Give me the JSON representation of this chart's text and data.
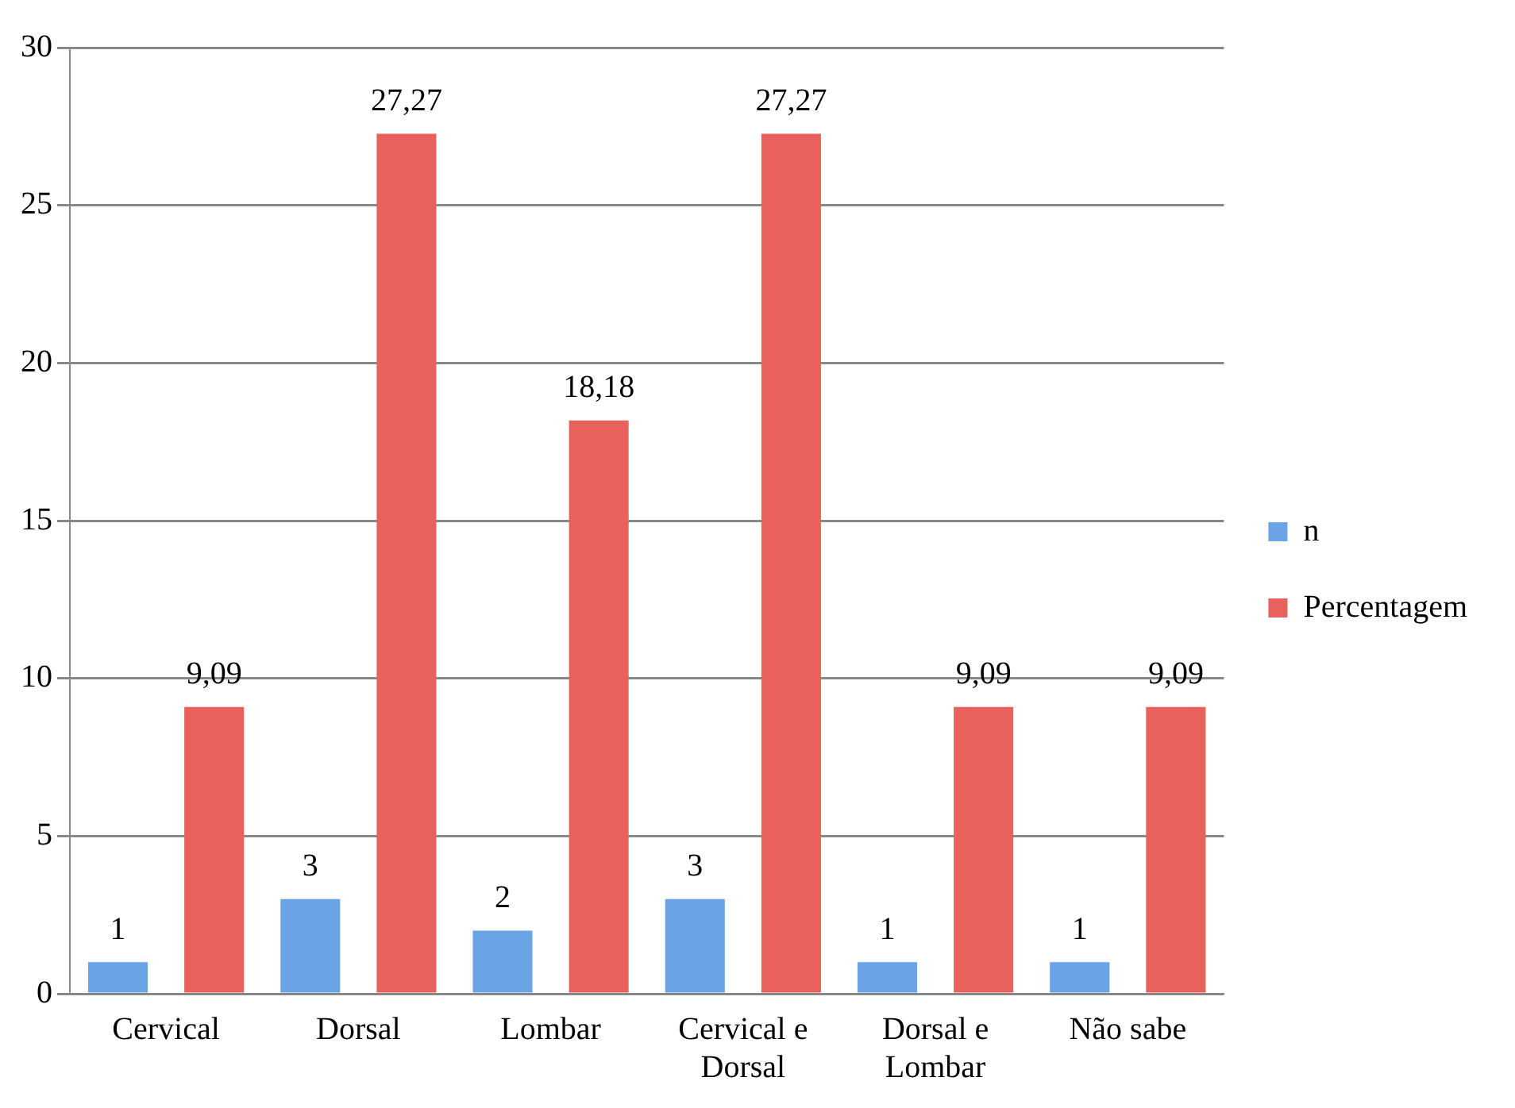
{
  "chart_data": {
    "type": "bar",
    "categories": [
      "Cervical",
      "Dorsal",
      "Lombar",
      "Cervical e Dorsal",
      "Dorsal e Lombar",
      "Não sabe"
    ],
    "series": [
      {
        "name": "n",
        "color": "#6aa3e6",
        "values": [
          1,
          3,
          2,
          3,
          1,
          1
        ],
        "value_labels": [
          "1",
          "3",
          "2",
          "3",
          "1",
          "1"
        ]
      },
      {
        "name": "Percentagem",
        "color": "#e8615c",
        "values": [
          9.09,
          27.27,
          18.18,
          27.27,
          9.09,
          9.09
        ],
        "value_labels": [
          "9,09",
          "27,27",
          "18,18",
          "27,27",
          "9,09",
          "9,09"
        ]
      }
    ],
    "ylim": [
      0,
      30
    ],
    "yticks": [
      0,
      5,
      10,
      15,
      20,
      25,
      30
    ],
    "grid": "y",
    "legend": "right"
  }
}
